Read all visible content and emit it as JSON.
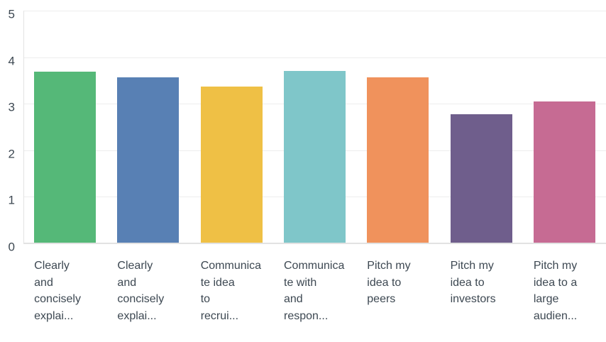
{
  "chart_data": {
    "type": "bar",
    "title": "",
    "xlabel": "",
    "ylabel": "",
    "ylim": [
      0,
      5
    ],
    "yticks": [
      0,
      1,
      2,
      3,
      4,
      5
    ],
    "grid": true,
    "legend": "none",
    "categories": [
      {
        "label": "Clearly and concisely explai...",
        "lines": [
          "Clearly",
          "and",
          "concisely",
          "explai..."
        ]
      },
      {
        "label": "Clearly and concisely explai...",
        "lines": [
          "Clearly",
          "and",
          "concisely",
          "explai..."
        ]
      },
      {
        "label": "Communicate idea to recrui...",
        "lines": [
          "Communica",
          "te idea",
          "to",
          "recrui..."
        ]
      },
      {
        "label": "Communicate with and respon...",
        "lines": [
          "Communica",
          "te with",
          "and",
          "respon..."
        ]
      },
      {
        "label": "Pitch my idea to peers",
        "lines": [
          "Pitch my",
          "idea to",
          "peers"
        ]
      },
      {
        "label": "Pitch my idea to investors",
        "lines": [
          "Pitch my",
          "idea to",
          "investors"
        ]
      },
      {
        "label": "Pitch my idea to a large audien...",
        "lines": [
          "Pitch my",
          "idea to a",
          "large",
          "audien..."
        ]
      }
    ],
    "values": [
      3.69,
      3.56,
      3.37,
      3.7,
      3.57,
      2.77,
      3.05
    ],
    "bar_colors": [
      "#55b878",
      "#5880b4",
      "#efc045",
      "#7fc6c9",
      "#f0925c",
      "#6f5e8c",
      "#c66b93"
    ]
  },
  "colors": {
    "background": "#ffffff",
    "gridline": "#ededed",
    "axis_line": "#e2e2e2",
    "tick_text": "#3d4852"
  }
}
